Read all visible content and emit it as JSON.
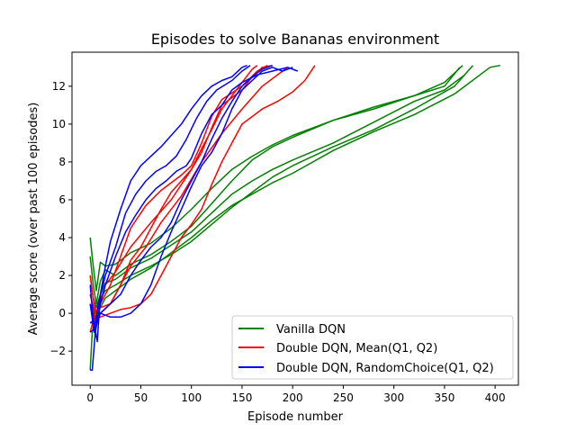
{
  "chart_data": {
    "type": "line",
    "title": "Episodes to solve Bananas environment",
    "xlabel": "Episode number",
    "ylabel": "Average score (over past 100 episodes)",
    "xlim": [
      -18,
      423
    ],
    "ylim": [
      -3.8,
      13.8
    ],
    "xticks": [
      0,
      50,
      100,
      150,
      200,
      250,
      300,
      350,
      400
    ],
    "yticks": [
      -2,
      0,
      2,
      4,
      6,
      8,
      10,
      12
    ],
    "grid": false,
    "legend_position": "bottom-right",
    "legend": [
      {
        "label": "Vanilla DQN",
        "color": "#008000"
      },
      {
        "label": "Double DQN, Mean(Q1, Q2)",
        "color": "#ff0000"
      },
      {
        "label": "Double DQN, RandomChoice(Q1, Q2)",
        "color": "#0000ff"
      }
    ],
    "series": [
      {
        "group": "Vanilla DQN",
        "color": "#008000",
        "points": [
          [
            0,
            4.0
          ],
          [
            3,
            2.5
          ],
          [
            6,
            1.2
          ],
          [
            10,
            2.7
          ],
          [
            15,
            2.5
          ],
          [
            25,
            2.6
          ],
          [
            40,
            3.2
          ],
          [
            60,
            3.7
          ],
          [
            80,
            4.5
          ],
          [
            100,
            5.5
          ],
          [
            120,
            6.6
          ],
          [
            140,
            7.6
          ],
          [
            160,
            8.3
          ],
          [
            180,
            8.9
          ],
          [
            200,
            9.4
          ],
          [
            240,
            10.2
          ],
          [
            280,
            10.8
          ],
          [
            320,
            11.5
          ],
          [
            350,
            12.2
          ],
          [
            368,
            13.1
          ]
        ]
      },
      {
        "group": "Vanilla DQN",
        "color": "#008000",
        "points": [
          [
            0,
            3.0
          ],
          [
            3,
            1.5
          ],
          [
            6,
            0.5
          ],
          [
            10,
            1.7
          ],
          [
            15,
            2.3
          ],
          [
            25,
            2.0
          ],
          [
            40,
            2.6
          ],
          [
            60,
            3.1
          ],
          [
            80,
            3.8
          ],
          [
            100,
            4.6
          ],
          [
            120,
            5.8
          ],
          [
            140,
            7.0
          ],
          [
            160,
            8.1
          ],
          [
            180,
            8.8
          ],
          [
            200,
            9.3
          ],
          [
            240,
            10.2
          ],
          [
            280,
            10.9
          ],
          [
            320,
            11.5
          ],
          [
            350,
            12.0
          ],
          [
            365,
            13.0
          ]
        ]
      },
      {
        "group": "Vanilla DQN",
        "color": "#008000",
        "points": [
          [
            0,
            2.0
          ],
          [
            3,
            0.8
          ],
          [
            6,
            0.3
          ],
          [
            10,
            1.0
          ],
          [
            15,
            1.6
          ],
          [
            25,
            1.8
          ],
          [
            40,
            2.4
          ],
          [
            60,
            2.9
          ],
          [
            80,
            3.6
          ],
          [
            100,
            4.3
          ],
          [
            120,
            5.3
          ],
          [
            140,
            6.3
          ],
          [
            160,
            7.0
          ],
          [
            180,
            7.6
          ],
          [
            200,
            8.1
          ],
          [
            240,
            9.0
          ],
          [
            280,
            10.1
          ],
          [
            320,
            11.2
          ],
          [
            350,
            11.8
          ],
          [
            370,
            12.6
          ]
        ]
      },
      {
        "group": "Vanilla DQN",
        "color": "#008000",
        "points": [
          [
            0,
            1.0
          ],
          [
            3,
            0.3
          ],
          [
            6,
            -0.5
          ],
          [
            10,
            0.8
          ],
          [
            15,
            1.2
          ],
          [
            25,
            1.5
          ],
          [
            40,
            2.0
          ],
          [
            60,
            2.5
          ],
          [
            80,
            3.1
          ],
          [
            100,
            3.8
          ],
          [
            120,
            4.7
          ],
          [
            140,
            5.6
          ],
          [
            160,
            6.4
          ],
          [
            180,
            7.2
          ],
          [
            200,
            7.8
          ],
          [
            240,
            8.8
          ],
          [
            280,
            9.7
          ],
          [
            320,
            10.8
          ],
          [
            360,
            12.0
          ],
          [
            378,
            13.1
          ]
        ]
      },
      {
        "group": "Vanilla DQN",
        "color": "#008000",
        "points": [
          [
            0,
            -3.0
          ],
          [
            2,
            -1.0
          ],
          [
            5,
            -0.2
          ],
          [
            10,
            0.3
          ],
          [
            15,
            0.8
          ],
          [
            25,
            1.2
          ],
          [
            40,
            1.8
          ],
          [
            60,
            2.4
          ],
          [
            80,
            3.2
          ],
          [
            100,
            4.0
          ],
          [
            120,
            4.9
          ],
          [
            140,
            5.7
          ],
          [
            160,
            6.3
          ],
          [
            180,
            6.9
          ],
          [
            200,
            7.4
          ],
          [
            240,
            8.6
          ],
          [
            280,
            9.6
          ],
          [
            320,
            10.5
          ],
          [
            360,
            11.6
          ],
          [
            385,
            12.6
          ],
          [
            395,
            13.0
          ],
          [
            405,
            13.1
          ]
        ]
      },
      {
        "group": "Double DQN, Mean(Q1, Q2)",
        "color": "#ff0000",
        "points": [
          [
            0,
            2.0
          ],
          [
            3,
            0.8
          ],
          [
            6,
            0.0
          ],
          [
            10,
            0.6
          ],
          [
            15,
            1.5
          ],
          [
            25,
            2.2
          ],
          [
            40,
            3.5
          ],
          [
            60,
            4.8
          ],
          [
            80,
            6.0
          ],
          [
            100,
            7.6
          ],
          [
            110,
            8.5
          ],
          [
            120,
            9.8
          ],
          [
            130,
            11.0
          ],
          [
            150,
            11.8
          ],
          [
            160,
            12.5
          ],
          [
            170,
            13.0
          ],
          [
            180,
            13.1
          ]
        ]
      },
      {
        "group": "Double DQN, Mean(Q1, Q2)",
        "color": "#ff0000",
        "points": [
          [
            0,
            1.0
          ],
          [
            5,
            0.0
          ],
          [
            10,
            0.5
          ],
          [
            20,
            1.5
          ],
          [
            30,
            3.0
          ],
          [
            40,
            4.5
          ],
          [
            55,
            5.7
          ],
          [
            70,
            6.5
          ],
          [
            90,
            7.3
          ],
          [
            100,
            7.8
          ],
          [
            110,
            9.0
          ],
          [
            120,
            10.4
          ],
          [
            130,
            11.3
          ],
          [
            150,
            12.0
          ],
          [
            165,
            12.8
          ],
          [
            175,
            13.1
          ]
        ]
      },
      {
        "group": "Double DQN, Mean(Q1, Q2)",
        "color": "#ff0000",
        "points": [
          [
            0,
            0.5
          ],
          [
            5,
            -0.3
          ],
          [
            10,
            0.0
          ],
          [
            20,
            0.5
          ],
          [
            30,
            1.5
          ],
          [
            40,
            2.5
          ],
          [
            55,
            3.5
          ],
          [
            70,
            4.8
          ],
          [
            90,
            6.2
          ],
          [
            110,
            8.0
          ],
          [
            130,
            9.5
          ],
          [
            150,
            10.8
          ],
          [
            170,
            12.0
          ],
          [
            190,
            12.8
          ],
          [
            195,
            13.0
          ]
        ]
      },
      {
        "group": "Double DQN, Mean(Q1, Q2)",
        "color": "#ff0000",
        "points": [
          [
            0,
            -0.5
          ],
          [
            5,
            -0.3
          ],
          [
            10,
            -0.2
          ],
          [
            20,
            0.0
          ],
          [
            30,
            0.2
          ],
          [
            40,
            0.3
          ],
          [
            50,
            0.5
          ],
          [
            60,
            1.0
          ],
          [
            70,
            2.0
          ],
          [
            80,
            3.0
          ],
          [
            90,
            4.0
          ],
          [
            100,
            4.7
          ],
          [
            110,
            5.5
          ],
          [
            120,
            6.8
          ],
          [
            130,
            8.0
          ],
          [
            140,
            9.0
          ],
          [
            150,
            10.0
          ],
          [
            170,
            10.8
          ],
          [
            185,
            11.2
          ],
          [
            200,
            11.7
          ],
          [
            212,
            12.3
          ],
          [
            222,
            13.1
          ]
        ]
      },
      {
        "group": "Double DQN, Mean(Q1, Q2)",
        "color": "#ff0000",
        "points": [
          [
            0,
            -1.0
          ],
          [
            5,
            0.0
          ],
          [
            10,
            0.3
          ],
          [
            20,
            0.5
          ],
          [
            30,
            1.5
          ],
          [
            40,
            2.8
          ],
          [
            50,
            3.5
          ],
          [
            60,
            4.5
          ],
          [
            70,
            5.5
          ],
          [
            80,
            6.4
          ],
          [
            90,
            7.0
          ],
          [
            100,
            7.6
          ],
          [
            110,
            8.7
          ],
          [
            120,
            9.7
          ],
          [
            130,
            10.8
          ],
          [
            140,
            11.5
          ],
          [
            150,
            12.2
          ],
          [
            160,
            12.9
          ],
          [
            165,
            13.1
          ]
        ]
      },
      {
        "group": "Double DQN, RandomChoice(Q1, Q2)",
        "color": "#0000ff",
        "points": [
          [
            0,
            1.5
          ],
          [
            3,
            -0.3
          ],
          [
            7,
            -1.5
          ],
          [
            10,
            1.0
          ],
          [
            15,
            2.5
          ],
          [
            20,
            3.8
          ],
          [
            30,
            5.5
          ],
          [
            40,
            7.0
          ],
          [
            50,
            7.8
          ],
          [
            60,
            8.3
          ],
          [
            70,
            8.8
          ],
          [
            80,
            9.4
          ],
          [
            90,
            10.0
          ],
          [
            100,
            10.8
          ],
          [
            110,
            11.5
          ],
          [
            120,
            12.0
          ],
          [
            130,
            12.3
          ],
          [
            140,
            12.5
          ],
          [
            150,
            13.0
          ],
          [
            155,
            13.1
          ]
        ]
      },
      {
        "group": "Double DQN, RandomChoice(Q1, Q2)",
        "color": "#0000ff",
        "points": [
          [
            0,
            0.5
          ],
          [
            4,
            -1.0
          ],
          [
            8,
            0.5
          ],
          [
            15,
            2.0
          ],
          [
            25,
            3.5
          ],
          [
            35,
            5.3
          ],
          [
            45,
            6.3
          ],
          [
            55,
            7.0
          ],
          [
            65,
            7.5
          ],
          [
            75,
            7.8
          ],
          [
            85,
            8.3
          ],
          [
            95,
            9.2
          ],
          [
            105,
            10.3
          ],
          [
            115,
            11.2
          ],
          [
            125,
            11.8
          ],
          [
            140,
            12.3
          ],
          [
            150,
            12.8
          ],
          [
            158,
            13.1
          ]
        ]
      },
      {
        "group": "Double DQN, RandomChoice(Q1, Q2)",
        "color": "#0000ff",
        "points": [
          [
            0,
            -3.0
          ],
          [
            2,
            -3.0
          ],
          [
            5,
            -1.0
          ],
          [
            10,
            0.5
          ],
          [
            15,
            1.5
          ],
          [
            25,
            3.0
          ],
          [
            35,
            4.3
          ],
          [
            45,
            5.2
          ],
          [
            55,
            6.0
          ],
          [
            65,
            6.6
          ],
          [
            75,
            7.0
          ],
          [
            85,
            7.5
          ],
          [
            95,
            7.8
          ],
          [
            100,
            8.2
          ],
          [
            110,
            9.5
          ],
          [
            120,
            10.5
          ],
          [
            130,
            11.0
          ],
          [
            140,
            11.8
          ],
          [
            150,
            12.2
          ],
          [
            165,
            12.6
          ],
          [
            180,
            12.8
          ],
          [
            195,
            13.0
          ],
          [
            205,
            12.8
          ]
        ]
      },
      {
        "group": "Double DQN, RandomChoice(Q1, Q2)",
        "color": "#0000ff",
        "points": [
          [
            0,
            -0.5
          ],
          [
            5,
            -0.5
          ],
          [
            10,
            0.0
          ],
          [
            20,
            0.5
          ],
          [
            30,
            1.0
          ],
          [
            40,
            2.0
          ],
          [
            50,
            2.8
          ],
          [
            60,
            3.5
          ],
          [
            70,
            4.0
          ],
          [
            80,
            4.8
          ],
          [
            90,
            6.0
          ],
          [
            100,
            7.0
          ],
          [
            110,
            8.0
          ],
          [
            120,
            9.2
          ],
          [
            130,
            10.3
          ],
          [
            140,
            11.2
          ],
          [
            150,
            12.0
          ],
          [
            160,
            12.5
          ],
          [
            170,
            12.9
          ],
          [
            180,
            13.1
          ]
        ]
      },
      {
        "group": "Double DQN, RandomChoice(Q1, Q2)",
        "color": "#0000ff",
        "points": [
          [
            0,
            -1.0
          ],
          [
            5,
            -0.8
          ],
          [
            10,
            0.0
          ],
          [
            20,
            -0.2
          ],
          [
            30,
            -0.2
          ],
          [
            40,
            0.0
          ],
          [
            50,
            0.5
          ],
          [
            60,
            1.5
          ],
          [
            70,
            3.0
          ],
          [
            80,
            4.3
          ],
          [
            90,
            5.5
          ],
          [
            100,
            6.7
          ],
          [
            110,
            7.8
          ],
          [
            120,
            8.5
          ],
          [
            130,
            9.5
          ],
          [
            140,
            10.8
          ],
          [
            150,
            11.8
          ],
          [
            160,
            12.3
          ],
          [
            170,
            12.8
          ],
          [
            180,
            13.0
          ],
          [
            190,
            12.8
          ],
          [
            200,
            13.0
          ]
        ]
      }
    ]
  }
}
